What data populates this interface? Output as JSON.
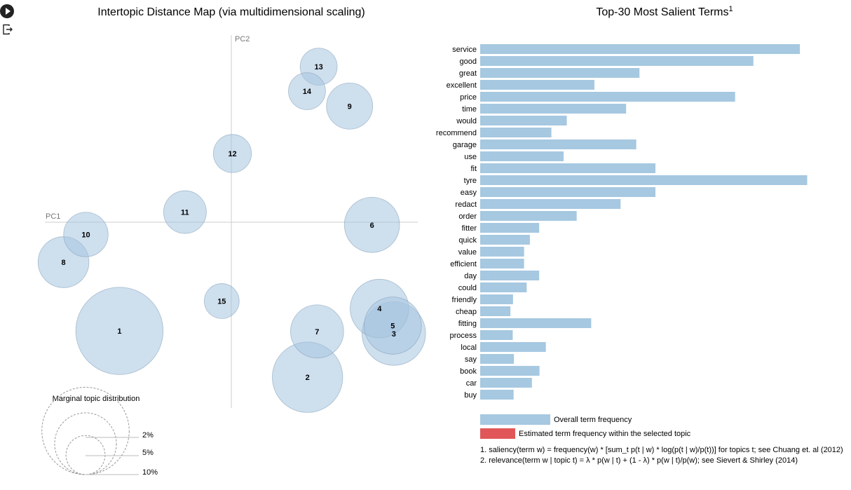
{
  "controls": {
    "run_icon": "play-icon",
    "output_icon": "exit-icon"
  },
  "colors": {
    "bubble_fill": "#a6c5e0",
    "bubble_stroke": "#7f9bb3",
    "bar": "#a6c8e1",
    "selected": "#e15759",
    "axis": "#cccccc"
  },
  "chart_data": [
    {
      "type": "scatter",
      "title": "Intertopic Distance Map (via multidimensional scaling)",
      "xlabel": "PC1",
      "ylabel": "PC2",
      "xlim": [
        -0.35,
        0.35
      ],
      "ylim": [
        -0.35,
        0.35
      ],
      "topics": [
        {
          "topic": "1",
          "x": -0.21,
          "y": -0.204,
          "size": 10.0
        },
        {
          "topic": "2",
          "x": 0.143,
          "y": -0.291,
          "size": 6.5
        },
        {
          "topic": "3",
          "x": 0.305,
          "y": -0.209,
          "size": 5.3
        },
        {
          "topic": "4",
          "x": 0.278,
          "y": -0.162,
          "size": 4.5
        },
        {
          "topic": "5",
          "x": 0.303,
          "y": -0.194,
          "size": 4.3
        },
        {
          "topic": "6",
          "x": 0.264,
          "y": -0.005,
          "size": 4.0
        },
        {
          "topic": "7",
          "x": 0.161,
          "y": -0.205,
          "size": 3.7
        },
        {
          "topic": "8",
          "x": -0.315,
          "y": -0.075,
          "size": 3.4
        },
        {
          "topic": "9",
          "x": 0.222,
          "y": 0.218,
          "size": 2.8
        },
        {
          "topic": "10",
          "x": -0.273,
          "y": -0.023,
          "size": 2.6
        },
        {
          "topic": "11",
          "x": -0.087,
          "y": 0.019,
          "size": 2.4
        },
        {
          "topic": "12",
          "x": 0.002,
          "y": 0.129,
          "size": 1.9
        },
        {
          "topic": "13",
          "x": 0.164,
          "y": 0.292,
          "size": 1.8
        },
        {
          "topic": "14",
          "x": 0.142,
          "y": 0.246,
          "size": 1.8
        },
        {
          "topic": "15",
          "x": -0.018,
          "y": -0.148,
          "size": 1.6
        }
      ],
      "marginal": {
        "title": "Marginal topic distribution",
        "entries": [
          {
            "label": "2%",
            "value": 2
          },
          {
            "label": "5%",
            "value": 5
          },
          {
            "label": "10%",
            "value": 10
          }
        ]
      }
    },
    {
      "type": "bar",
      "orientation": "horizontal",
      "title": "Top-30 Most Salient Terms",
      "title_sup": "1",
      "xlim": [
        0,
        1160
      ],
      "categories": [
        "service",
        "good",
        "great",
        "excellent",
        "price",
        "time",
        "would",
        "recommend",
        "garage",
        "use",
        "fit",
        "tyre",
        "easy",
        "redact",
        "order",
        "fitter",
        "quick",
        "value",
        "efficient",
        "day",
        "could",
        "friendly",
        "cheap",
        "fitting",
        "process",
        "local",
        "say",
        "book",
        "car",
        "buy"
      ],
      "values": [
        1100,
        940,
        548,
        393,
        877,
        502,
        298,
        245,
        537,
        287,
        603,
        1125,
        603,
        483,
        332,
        203,
        171,
        151,
        151,
        203,
        160,
        113,
        104,
        382,
        112,
        226,
        116,
        204,
        178,
        115
      ],
      "legend": [
        {
          "label": "Overall term frequency",
          "color": "#a6c8e1"
        },
        {
          "label": "Estimated term frequency within the selected topic",
          "color": "#e15759"
        }
      ],
      "footnotes": [
        "1. saliency(term w) = frequency(w) * [sum_t p(t | w) * log(p(t | w)/p(t))] for topics t; see Chuang et. al (2012)",
        "2. relevance(term w | topic t) = λ * p(w | t) + (1 - λ) * p(w | t)/p(w); see Sievert & Shirley (2014)"
      ]
    }
  ]
}
